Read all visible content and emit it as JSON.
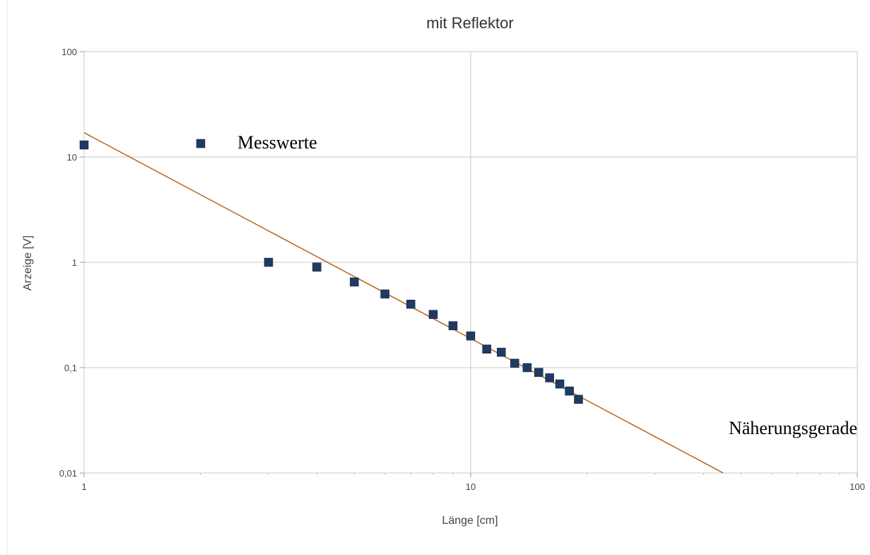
{
  "chart_data": {
    "type": "scatter",
    "title": "mit Reflektor",
    "xlabel": "Länge [cm]",
    "ylabel": "Arzeige [V]",
    "x_scale": "log",
    "y_scale": "log",
    "xlim": [
      1,
      100
    ],
    "ylim": [
      0.01,
      100
    ],
    "grid": true,
    "x_ticks": [
      {
        "value": 1,
        "label": "1"
      },
      {
        "value": 10,
        "label": "10"
      },
      {
        "value": 100,
        "label": "100"
      }
    ],
    "y_ticks": [
      {
        "value": 100,
        "label": "100"
      },
      {
        "value": 10,
        "label": "10"
      },
      {
        "value": 1,
        "label": "1"
      },
      {
        "value": 0.1,
        "label": "0,1"
      },
      {
        "value": 0.01,
        "label": "0,01"
      }
    ],
    "series": [
      {
        "name": "Messwerte",
        "kind": "points",
        "marker": "square",
        "color": "#1f3b63",
        "points": [
          {
            "x": 1,
            "y": 13
          },
          {
            "x": 3,
            "y": 1.0
          },
          {
            "x": 4,
            "y": 0.9
          },
          {
            "x": 5,
            "y": 0.65
          },
          {
            "x": 6,
            "y": 0.5
          },
          {
            "x": 7,
            "y": 0.4
          },
          {
            "x": 8,
            "y": 0.32
          },
          {
            "x": 9,
            "y": 0.25
          },
          {
            "x": 10,
            "y": 0.2
          },
          {
            "x": 11,
            "y": 0.15
          },
          {
            "x": 12,
            "y": 0.14
          },
          {
            "x": 13,
            "y": 0.11
          },
          {
            "x": 14,
            "y": 0.1
          },
          {
            "x": 15,
            "y": 0.09
          },
          {
            "x": 16,
            "y": 0.08
          },
          {
            "x": 17,
            "y": 0.07
          },
          {
            "x": 18,
            "y": 0.06
          },
          {
            "x": 19,
            "y": 0.05
          }
        ]
      },
      {
        "name": "Näherungsgerade",
        "kind": "line",
        "color": "#b5651d",
        "points": [
          {
            "x": 1,
            "y": 17
          },
          {
            "x": 45,
            "y": 0.01
          }
        ]
      }
    ],
    "legend": {
      "position": "top-left",
      "entries": [
        {
          "label": "Messwerte",
          "marker": "square",
          "color": "#1f3b63"
        }
      ]
    },
    "annotations": [
      {
        "text": "Näherungsgerade",
        "position": "right"
      }
    ],
    "colors": {
      "grid": "#c8c8c8",
      "axis_text": "#444444"
    }
  }
}
